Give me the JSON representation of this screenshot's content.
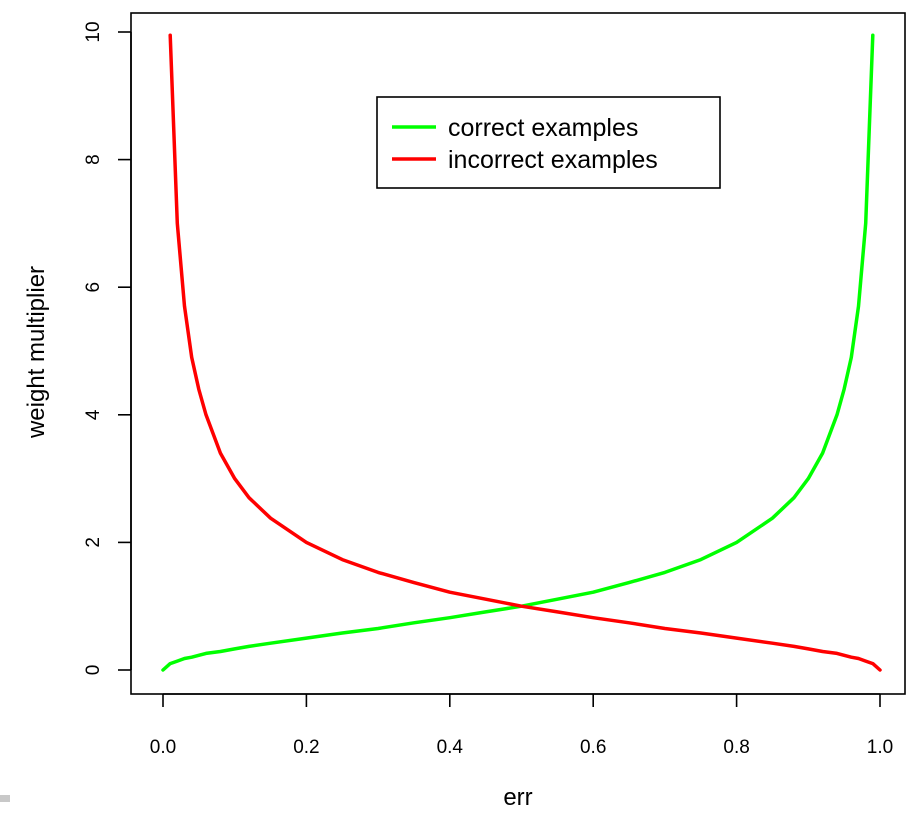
{
  "chart_data": {
    "type": "line",
    "title": "",
    "xlabel": "err",
    "ylabel": "weight multiplier",
    "xlim": [
      0.0,
      1.0
    ],
    "ylim": [
      0,
      10
    ],
    "x_ticks": [
      "0.0",
      "0.2",
      "0.4",
      "0.6",
      "0.8",
      "1.0"
    ],
    "y_ticks": [
      "0",
      "2",
      "4",
      "6",
      "8",
      "10"
    ],
    "grid": false,
    "legend_position": "top-center",
    "colors": {
      "correct": "#00ff00",
      "incorrect": "#ff0000"
    },
    "x": [
      0.0,
      0.01,
      0.02,
      0.03,
      0.04,
      0.05,
      0.06,
      0.08,
      0.1,
      0.12,
      0.15,
      0.2,
      0.25,
      0.3,
      0.35,
      0.4,
      0.45,
      0.5,
      0.55,
      0.6,
      0.65,
      0.7,
      0.75,
      0.8,
      0.85,
      0.88,
      0.9,
      0.92,
      0.94,
      0.95,
      0.96,
      0.97,
      0.98,
      0.99,
      1.0
    ],
    "series": [
      {
        "name": "correct examples",
        "values": [
          0.0,
          0.1,
          0.14,
          0.18,
          0.2,
          0.23,
          0.26,
          0.29,
          0.33,
          0.37,
          0.42,
          0.5,
          0.58,
          0.65,
          0.74,
          0.82,
          0.91,
          1.0,
          1.11,
          1.22,
          1.37,
          1.53,
          1.73,
          2.0,
          2.38,
          2.7,
          3.0,
          3.4,
          4.0,
          4.4,
          4.9,
          5.7,
          7.0,
          9.95,
          null
        ]
      },
      {
        "name": "incorrect examples",
        "values": [
          null,
          9.95,
          7.0,
          5.7,
          4.9,
          4.4,
          4.0,
          3.4,
          3.0,
          2.7,
          2.38,
          2.0,
          1.73,
          1.53,
          1.37,
          1.22,
          1.11,
          1.0,
          0.91,
          0.82,
          0.74,
          0.65,
          0.58,
          0.5,
          0.42,
          0.37,
          0.33,
          0.29,
          0.26,
          0.23,
          0.2,
          0.18,
          0.14,
          0.1,
          0.0
        ]
      }
    ]
  }
}
